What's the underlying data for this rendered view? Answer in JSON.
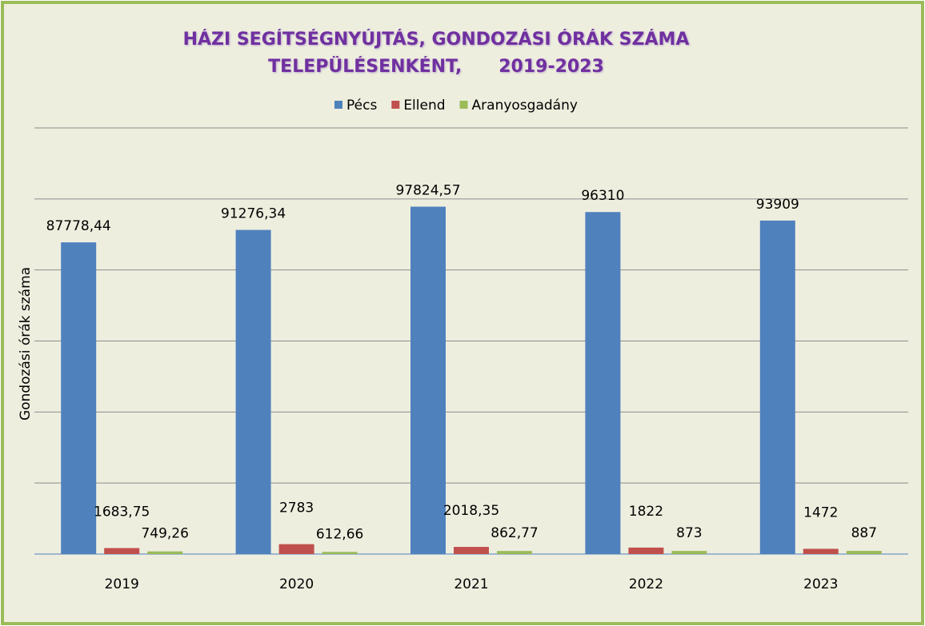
{
  "chart_data": {
    "type": "bar",
    "title": [
      "HÁZI SEGÍTSÉGNYÚJTÁS, GONDOZÁSI ÓRÁK SZÁMA",
      "TELEPÜLÉSENKÉNT,      2019-2023"
    ],
    "y_axis_label": "Gondozási órák száma",
    "categories": [
      "2019",
      "2020",
      "2021",
      "2022",
      "2023"
    ],
    "series": [
      {
        "name": "Pécs",
        "color": "#4f81bd",
        "values": [
          87778.44,
          91276.34,
          97824.57,
          96310,
          93909
        ],
        "value_labels": [
          "87778,44",
          "91276,34",
          "97824,57",
          "96310",
          "93909"
        ]
      },
      {
        "name": "Ellend",
        "color": "#c0504d",
        "values": [
          1683.75,
          2783,
          2018.35,
          1822,
          1472
        ],
        "value_labels": [
          "1683,75",
          "2783",
          "2018,35",
          "1822",
          "1472"
        ]
      },
      {
        "name": "Aranyosgadány",
        "color": "#9bbb59",
        "values": [
          749.26,
          612.66,
          862.77,
          873,
          887
        ],
        "value_labels": [
          "749,26",
          "612,66",
          "862,77",
          "873",
          "887"
        ]
      }
    ],
    "ylim": [
      0,
      120000
    ],
    "yticks": [
      0,
      20000,
      40000,
      60000,
      80000,
      100000,
      120000
    ],
    "grid": true,
    "legend": "top"
  }
}
